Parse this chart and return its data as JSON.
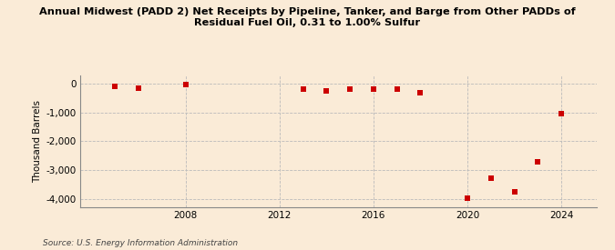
{
  "title": "Annual Midwest (PADD 2) Net Receipts by Pipeline, Tanker, and Barge from Other PADDs of\nResidual Fuel Oil, 0.31 to 1.00% Sulfur",
  "ylabel": "Thousand Barrels",
  "source": "Source: U.S. Energy Information Administration",
  "background_color": "#faebd7",
  "plot_bg_color": "#faebd7",
  "marker_color": "#cc0000",
  "marker_size": 4,
  "xlim": [
    2003.5,
    2025.5
  ],
  "ylim": [
    -4300,
    300
  ],
  "xticks": [
    2008,
    2012,
    2016,
    2020,
    2024
  ],
  "yticks": [
    0,
    -1000,
    -2000,
    -3000,
    -4000
  ],
  "grid_color": "#bbbbbb",
  "data_x": [
    2005,
    2006,
    2008,
    2013,
    2014,
    2015,
    2016,
    2017,
    2018,
    2020,
    2021,
    2022,
    2023,
    2024
  ],
  "data_y": [
    -100,
    -150,
    -30,
    -200,
    -240,
    -185,
    -200,
    -200,
    -300,
    -3980,
    -3270,
    -3750,
    -2720,
    -1050
  ]
}
